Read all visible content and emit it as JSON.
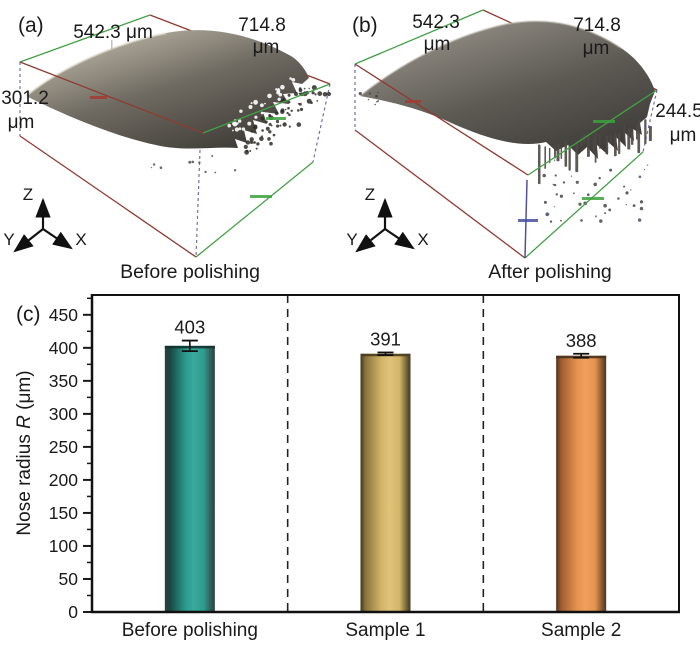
{
  "figure": {
    "background": "#ffffff",
    "panel_a": {
      "tag": "(a)",
      "dim_width": "542.3 μm",
      "dim_depth_value": "714.8",
      "dim_depth_unit": "μm",
      "dim_height_value": "301.2",
      "dim_height_unit": "μm",
      "axis_z": "Z",
      "axis_y": "Y",
      "axis_x": "X",
      "caption": "Before polishing"
    },
    "panel_b": {
      "tag": "(b)",
      "dim_width_value": "542.3",
      "dim_width_unit": "μm",
      "dim_depth_value": "714.8",
      "dim_depth_unit": "μm",
      "dim_height_value": "244.5",
      "dim_height_unit": "μm",
      "axis_z": "Z",
      "axis_y": "Y",
      "axis_x": "X",
      "caption": "After polishing"
    },
    "panel_c": {
      "tag": "(c)"
    }
  },
  "chart_data": {
    "type": "bar",
    "categories": [
      "Before polishing",
      "Sample 1",
      "Sample 2"
    ],
    "values": [
      403,
      391,
      388
    ],
    "errors": [
      8,
      2,
      3
    ],
    "title": "",
    "xlabel": "",
    "ylabel": "Nose radius R (μm)",
    "ylabel_prefix": "Nose radius ",
    "ylabel_italic": "R",
    "ylabel_suffix": " (μm)",
    "ylim": [
      0,
      480
    ],
    "ytick_step_major": 50,
    "ytick_step_minor": 25,
    "ytick_label_max": 450,
    "grid": false,
    "legend": "none",
    "separator_style": "vertical dashed lines between categories",
    "bar_colors": [
      {
        "edge": "#2e3f3b",
        "dark": "#174741",
        "mid": "#2d9b8e",
        "light": "#3aa89b",
        "cap": "#10332f"
      },
      {
        "edge": "#3f3620",
        "dark": "#8a743c",
        "mid": "#d4b569",
        "light": "#dfc47a",
        "cap": "#4a3d1e"
      },
      {
        "edge": "#4e3420",
        "dark": "#a05c31",
        "mid": "#e5934f",
        "light": "#f0a05c",
        "cap": "#47311c"
      }
    ],
    "axis_color": "#1a1a1a",
    "error_bar_color": "#111111"
  },
  "wireframe_colors": {
    "green": "#43a047",
    "red": "#8e3b32",
    "blue": "#4a4a9e"
  }
}
